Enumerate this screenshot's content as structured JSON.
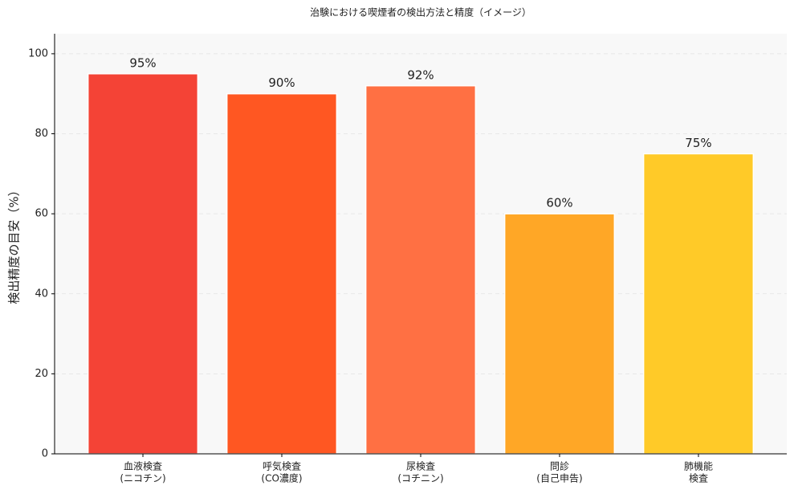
{
  "chart_data": {
    "type": "bar",
    "title": "治験における喫煙者の検出方法と精度（イメージ）",
    "y_label": "検出精度の目安（%）",
    "categories": [
      [
        "血液検査",
        "(ニコチン)"
      ],
      [
        "呼気検査",
        "(CO濃度)"
      ],
      [
        "尿検査",
        "(コチニン)"
      ],
      [
        "問診",
        "(自己申告)"
      ],
      [
        "肺機能",
        "検査"
      ]
    ],
    "values": [
      95,
      90,
      92,
      60,
      75
    ],
    "value_labels": [
      "95%",
      "90%",
      "92%",
      "60%",
      "75%"
    ],
    "colors": [
      "#f44336",
      "#ff5722",
      "#ff7043",
      "#ffa726",
      "#ffca28"
    ],
    "ylim": [
      0,
      105
    ],
    "yticks": [
      0,
      20,
      40,
      60,
      80,
      100
    ],
    "grid": true
  }
}
